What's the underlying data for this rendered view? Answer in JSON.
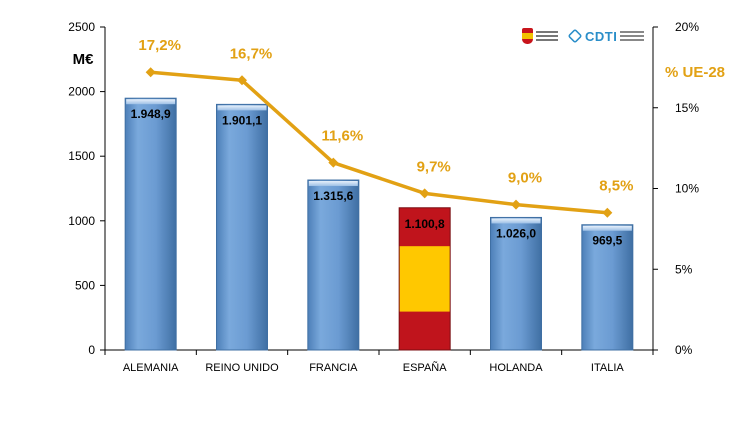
{
  "chart_data": {
    "type": "bar",
    "categories": [
      "ALEMANIA",
      "REINO UNIDO",
      "FRANCIA",
      "ESPAÑA",
      "HOLANDA",
      "ITALIA"
    ],
    "values": [
      1948.9,
      1901.1,
      1315.6,
      1100.8,
      1026.0,
      969.5
    ],
    "value_labels": [
      "1.948,9",
      "1.901,1",
      "1.315,6",
      "1.100,8",
      "1.026,0",
      "969,5"
    ],
    "highlight_category": "ESPAÑA",
    "ylabel": "M€",
    "ylim": [
      0,
      2500
    ],
    "yticks": [
      "0",
      "500",
      "1000",
      "1500",
      "2000",
      "2500"
    ],
    "grid": false,
    "secondary": {
      "type": "line",
      "label": "% UE-28",
      "values": [
        17.2,
        16.7,
        11.6,
        9.7,
        9.0,
        8.5
      ],
      "value_labels": [
        "17,2%",
        "16,7%",
        "11,6%",
        "9,7%",
        "9,0%",
        "8,5%"
      ],
      "ylim": [
        0,
        20
      ],
      "yticks": [
        "0%",
        "5%",
        "10%",
        "15%",
        "20%"
      ]
    }
  },
  "colors": {
    "bar": "#6b9bd2",
    "bar_dark": "#3f6fa3",
    "spain_red": "#c0141c",
    "spain_yellow": "#ffc800",
    "line": "#e2a114",
    "axis": "#000000"
  },
  "logos": [
    "spanish-ministry-logo",
    "cdti-logo"
  ]
}
